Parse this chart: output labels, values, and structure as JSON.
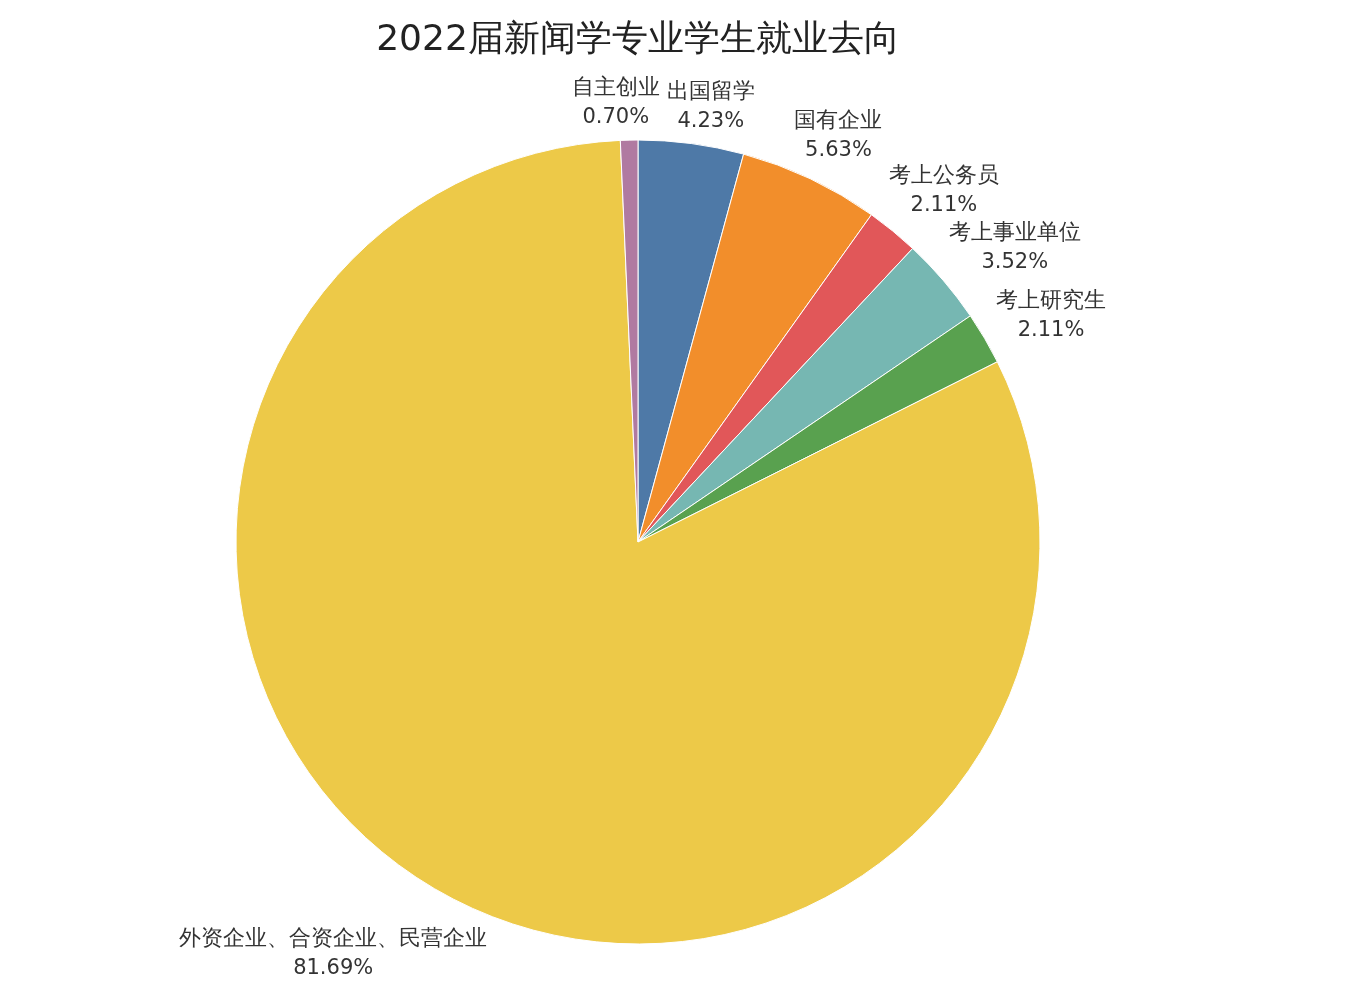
{
  "chart_data": {
    "type": "pie",
    "title": "2022届新闻学专业学生就业去向",
    "categories": [
      "出国留学",
      "国有企业",
      "考上公务员",
      "考上事业单位",
      "考上研究生",
      "外资企业、合资企业、民营企业",
      "自主创业"
    ],
    "values": [
      4.23,
      5.63,
      2.11,
      3.52,
      2.11,
      81.69,
      0.7
    ],
    "value_labels": [
      "4.23%",
      "5.63%",
      "2.11%",
      "3.52%",
      "2.11%",
      "81.69%",
      "0.70%"
    ],
    "colors": [
      "#4e79a7",
      "#f28e2b",
      "#e15759",
      "#76b7b2",
      "#59a14f",
      "#edc948",
      "#b07aa1"
    ]
  }
}
